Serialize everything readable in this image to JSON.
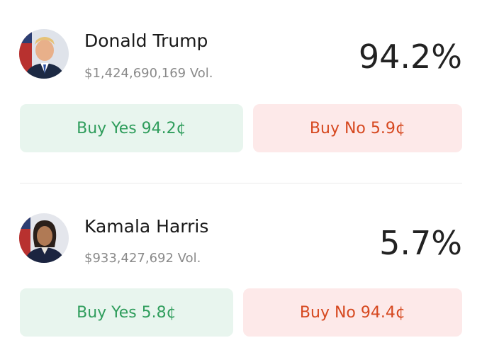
{
  "candidates": [
    {
      "name": "Donald Trump",
      "volume": "$1,424,690,169 Vol.",
      "percent": "94.2%",
      "buy_yes": "Buy Yes 94.2¢",
      "buy_no": "Buy No 5.9¢"
    },
    {
      "name": "Kamala Harris",
      "volume": "$933,427,692 Vol.",
      "percent": "5.7%",
      "buy_yes": "Buy Yes 5.8¢",
      "buy_no": "Buy No 94.4¢"
    }
  ]
}
